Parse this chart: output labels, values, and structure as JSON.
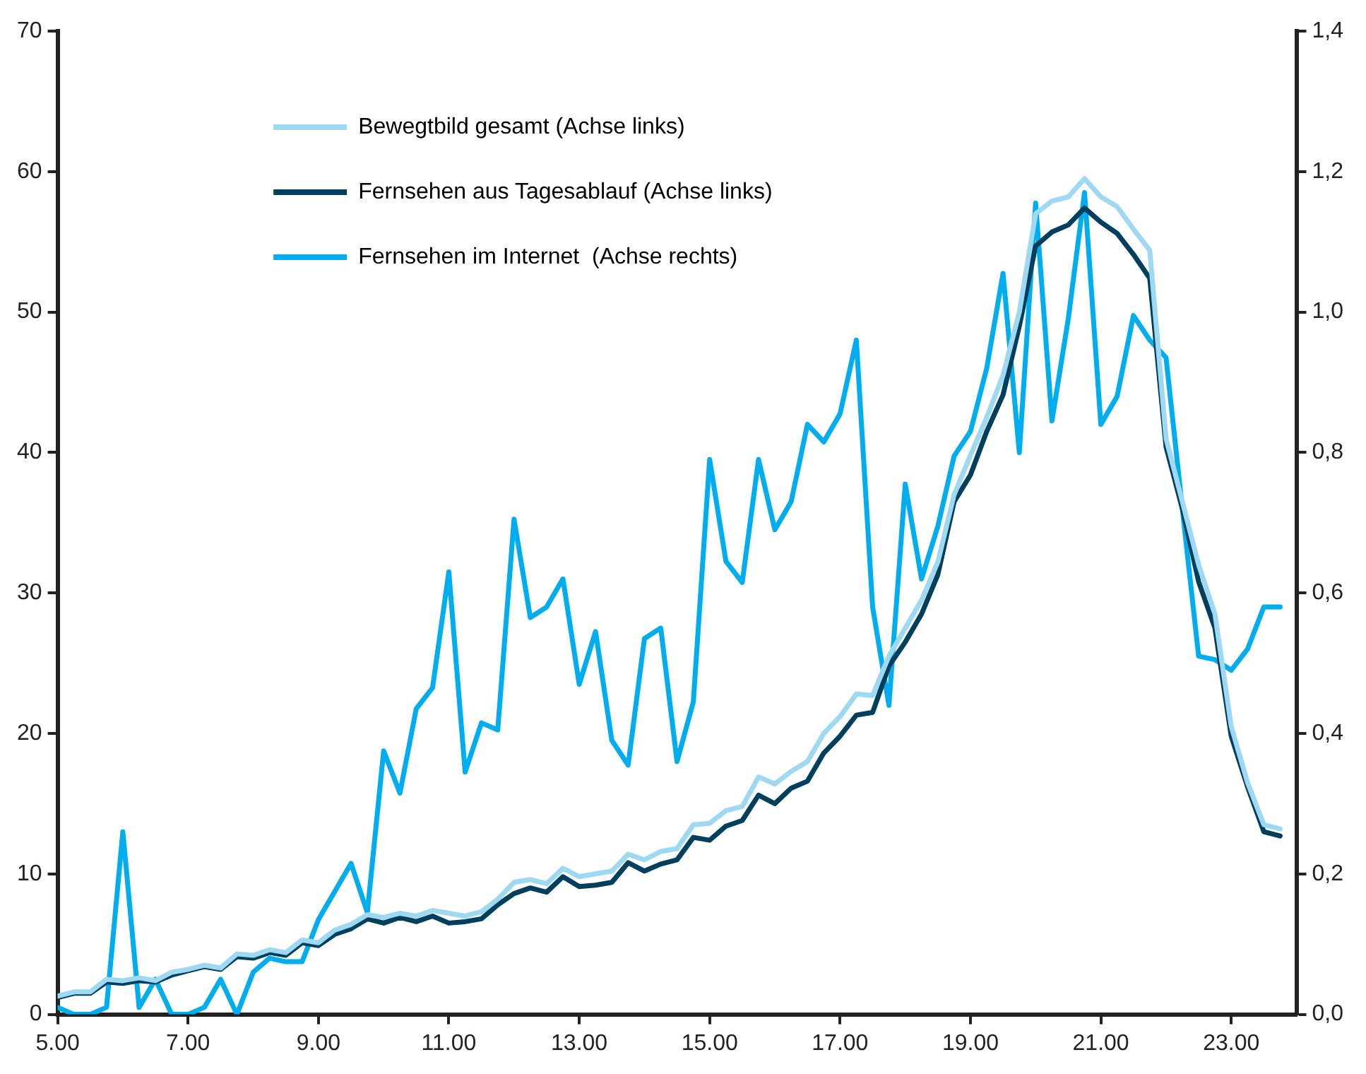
{
  "chart_data": {
    "type": "line",
    "x": [
      5,
      5.25,
      5.5,
      5.75,
      6,
      6.25,
      6.5,
      6.75,
      7,
      7.25,
      7.5,
      7.75,
      8,
      8.25,
      8.5,
      8.75,
      9,
      9.25,
      9.5,
      9.75,
      10,
      10.25,
      10.5,
      10.75,
      11,
      11.25,
      11.5,
      11.75,
      12,
      12.25,
      12.5,
      12.75,
      13,
      13.25,
      13.5,
      13.75,
      14,
      14.25,
      14.5,
      14.75,
      15,
      15.25,
      15.5,
      15.75,
      16,
      16.25,
      16.5,
      16.75,
      17,
      17.25,
      17.5,
      17.75,
      18,
      18.25,
      18.5,
      18.75,
      19,
      19.25,
      19.5,
      19.75,
      20,
      20.25,
      20.5,
      20.75,
      21,
      21.25,
      21.5,
      21.75,
      22,
      22.25,
      22.5,
      22.75,
      23,
      23.25,
      23.5,
      23.75
    ],
    "series": [
      {
        "name": "Bewegtbild gesamt (Achse links)",
        "color": "#9dd9f3",
        "values": [
          1.3,
          1.6,
          1.6,
          2.5,
          2.4,
          2.6,
          2.4,
          3.0,
          3.2,
          3.5,
          3.3,
          4.3,
          4.2,
          4.6,
          4.4,
          5.3,
          5.1,
          6.0,
          6.4,
          7.1,
          6.9,
          7.2,
          7.0,
          7.4,
          7.2,
          7.0,
          7.3,
          8.2,
          9.4,
          9.6,
          9.3,
          10.4,
          9.8,
          10.0,
          10.2,
          11.4,
          11.0,
          11.6,
          11.8,
          13.5,
          13.6,
          14.5,
          14.8,
          16.9,
          16.4,
          17.3,
          18.0,
          20.0,
          21.2,
          22.8,
          22.7,
          25.5,
          27.5,
          29.5,
          32.2,
          37.0,
          39.8,
          42.5,
          45.5,
          50.0,
          57.0,
          57.9,
          58.2,
          59.5,
          58.2,
          57.5,
          55.9,
          54.4,
          41.0,
          36.5,
          32.0,
          28.5,
          20.5,
          16.5,
          13.5,
          13.2
        ]
      },
      {
        "name": "Fernsehen aus Tagesablauf (Achse links)",
        "color": "#003f5e",
        "values": [
          1.2,
          1.5,
          1.5,
          2.3,
          2.2,
          2.4,
          2.3,
          2.8,
          3.1,
          3.4,
          3.2,
          4.1,
          4.0,
          4.4,
          4.2,
          5.1,
          4.9,
          5.7,
          6.1,
          6.8,
          6.5,
          6.9,
          6.6,
          7.0,
          6.5,
          6.6,
          6.8,
          7.8,
          8.6,
          9.0,
          8.7,
          9.8,
          9.1,
          9.2,
          9.4,
          10.8,
          10.2,
          10.7,
          11.0,
          12.6,
          12.4,
          13.4,
          13.8,
          15.6,
          15.0,
          16.1,
          16.6,
          18.6,
          19.8,
          21.3,
          21.5,
          24.8,
          26.5,
          28.5,
          31.3,
          36.5,
          38.4,
          41.5,
          44.1,
          49.0,
          54.7,
          55.7,
          56.2,
          57.4,
          56.4,
          55.6,
          54.1,
          52.4,
          40.4,
          36.0,
          30.8,
          27.5,
          19.8,
          16.2,
          13.0,
          12.7
        ]
      },
      {
        "name": "Fernsehen im Internet  (Achse rechts)",
        "color": "#00aeef",
        "axis": "y2",
        "values": [
          0.01,
          0,
          0,
          0.01,
          0.26,
          0.01,
          0.05,
          0,
          0,
          0.01,
          0.05,
          0,
          0.06,
          0.08,
          0.075,
          0.075,
          0.135,
          0.175,
          0.215,
          0.145,
          0.375,
          0.315,
          0.435,
          0.465,
          0.63,
          0.345,
          0.415,
          0.405,
          0.705,
          0.565,
          0.58,
          0.62,
          0.47,
          0.545,
          0.39,
          0.355,
          0.535,
          0.55,
          0.36,
          0.445,
          0.79,
          0.645,
          0.615,
          0.79,
          0.69,
          0.73,
          0.84,
          0.815,
          0.855,
          0.96,
          0.58,
          0.44,
          0.755,
          0.62,
          0.695,
          0.795,
          0.83,
          0.92,
          1.055,
          0.8,
          1.155,
          0.845,
          0.99,
          1.17,
          0.84,
          0.88,
          0.995,
          0.96,
          0.935,
          0.72,
          0.51,
          0.505,
          0.49,
          0.52,
          0.58,
          0.58
        ]
      }
    ],
    "xlim": [
      5,
      24
    ],
    "xticks": [
      {
        "value": 5,
        "label": "5.00"
      },
      {
        "value": 7,
        "label": "7.00"
      },
      {
        "value": 9,
        "label": "9.00"
      },
      {
        "value": 11,
        "label": "11.00"
      },
      {
        "value": 13,
        "label": "13.00"
      },
      {
        "value": 15,
        "label": "15.00"
      },
      {
        "value": 17,
        "label": "17.00"
      },
      {
        "value": 19,
        "label": "19.00"
      },
      {
        "value": 21,
        "label": "21.00"
      },
      {
        "value": 23,
        "label": "23.00"
      }
    ],
    "ylim": [
      0,
      70
    ],
    "yticks": [
      0,
      10,
      20,
      30,
      40,
      50,
      60,
      70
    ],
    "y2lim": [
      0,
      1.4
    ],
    "y2ticks": [
      {
        "value": 0,
        "label": "0,0"
      },
      {
        "value": 0.2,
        "label": "0,2"
      },
      {
        "value": 0.4,
        "label": "0,4"
      },
      {
        "value": 0.6,
        "label": "0,6"
      },
      {
        "value": 0.8,
        "label": "0,8"
      },
      {
        "value": 1.0,
        "label": "1,0"
      },
      {
        "value": 1.2,
        "label": "1,2"
      },
      {
        "value": 1.4,
        "label": "1,4"
      }
    ],
    "grid": false,
    "legend": "top left",
    "marker": "none",
    "line_style": "solid"
  }
}
